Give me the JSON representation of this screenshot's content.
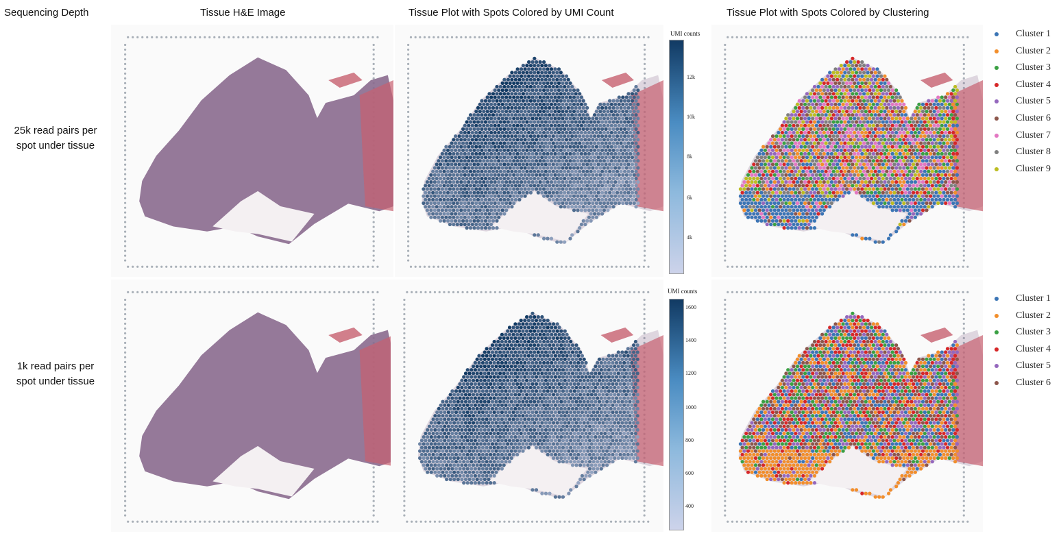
{
  "headers": {
    "depth": "Sequencing Depth",
    "he": "Tissue H&E Image",
    "umi": "Tissue Plot with Spots Colored by UMI Count",
    "cluster": "Tissue Plot with Spots Colored by Clustering"
  },
  "rows": [
    {
      "label_line1": "25k read pairs per",
      "label_line2": "spot under tissue",
      "colorbar": {
        "title": "UMI counts",
        "ticks": [
          "12k",
          "10k",
          "8k",
          "6k",
          "4k"
        ]
      },
      "clusters": [
        {
          "name": "Cluster 1",
          "color": "#3b75b5"
        },
        {
          "name": "Cluster 2",
          "color": "#f28e2b"
        },
        {
          "name": "Cluster 3",
          "color": "#3aa043"
        },
        {
          "name": "Cluster 4",
          "color": "#d62728"
        },
        {
          "name": "Cluster 5",
          "color": "#9467bd"
        },
        {
          "name": "Cluster 6",
          "color": "#8c564b"
        },
        {
          "name": "Cluster 7",
          "color": "#e377c2"
        },
        {
          "name": "Cluster 8",
          "color": "#7f7f7f"
        },
        {
          "name": "Cluster 9",
          "color": "#bcbd22"
        }
      ]
    },
    {
      "label_line1": "1k read pairs per",
      "label_line2": "spot under tissue",
      "colorbar": {
        "title": "UMI counts",
        "ticks": [
          "1600",
          "1400",
          "1200",
          "1000",
          "800",
          "600",
          "400"
        ]
      },
      "clusters": [
        {
          "name": "Cluster 1",
          "color": "#3b75b5"
        },
        {
          "name": "Cluster 2",
          "color": "#f28e2b"
        },
        {
          "name": "Cluster 3",
          "color": "#3aa043"
        },
        {
          "name": "Cluster 4",
          "color": "#d62728"
        },
        {
          "name": "Cluster 5",
          "color": "#9467bd"
        },
        {
          "name": "Cluster 6",
          "color": "#8c564b"
        }
      ]
    }
  ],
  "colors": {
    "he_tissue": "#8a6a8e",
    "he_edge": "#c7606f",
    "umi_dark": "#113a63",
    "umi_light": "#cdd3ea",
    "fiducial": "#a9b0b8"
  }
}
